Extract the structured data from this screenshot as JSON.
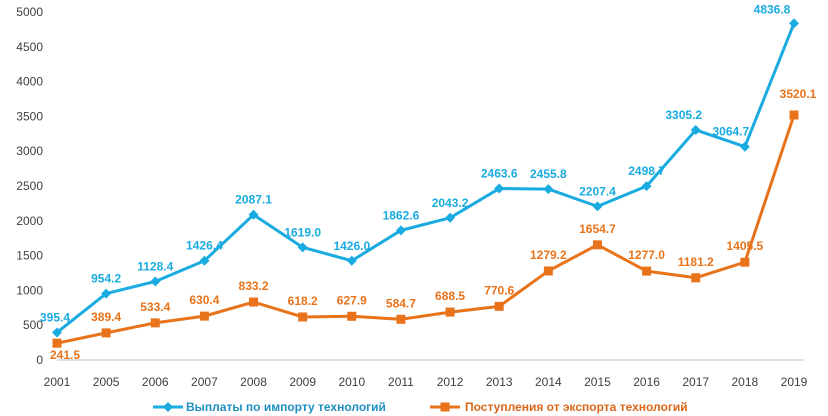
{
  "chart_data": {
    "type": "line",
    "categories": [
      "2001",
      "2005",
      "2006",
      "2007",
      "2008",
      "2009",
      "2010",
      "2011",
      "2012",
      "2013",
      "2014",
      "2015",
      "2016",
      "2017",
      "2018",
      "2019"
    ],
    "series": [
      {
        "name": "Выплаты по импорту технологий",
        "color": "#1aabe0",
        "marker": "diamond",
        "values": [
          395.4,
          954.2,
          1128.4,
          1426.4,
          2087.1,
          1619.0,
          1426.0,
          1862.6,
          2043.2,
          2463.6,
          2455.8,
          2207.4,
          2498.7,
          3305.2,
          3064.7,
          4836.8
        ],
        "labels": [
          "395.4",
          "954.2",
          "1128.4",
          "1426.4",
          "2087.1",
          "1619.0",
          "1426.0",
          "1862.6",
          "2043.2",
          "2463.6",
          "2455.8",
          "2207.4",
          "2498.7",
          "3305.2",
          "3064.7",
          "4836.8"
        ]
      },
      {
        "name": "Поступления от экспорта технологий",
        "color": "#e8731a",
        "marker": "square",
        "values": [
          241.5,
          389.4,
          533.4,
          630.4,
          833.2,
          618.2,
          627.9,
          584.7,
          688.5,
          770.6,
          1279.2,
          1654.7,
          1277.0,
          1181.2,
          1405.5,
          3520.1
        ],
        "labels": [
          "241.5",
          "389.4",
          "533.4",
          "630.4",
          "833.2",
          "618.2",
          "627.9",
          "584.7",
          "688.5",
          "770.6",
          "1279.2",
          "1654.7",
          "1277.0",
          "1181.2",
          "1405.5",
          "3520.1"
        ]
      }
    ],
    "ylim": [
      0,
      5000
    ],
    "yticks": [
      "0",
      "500",
      "1000",
      "1500",
      "2000",
      "2500",
      "3000",
      "3500",
      "4000",
      "4500",
      "5000"
    ],
    "grid": false,
    "legend": "bottom"
  }
}
